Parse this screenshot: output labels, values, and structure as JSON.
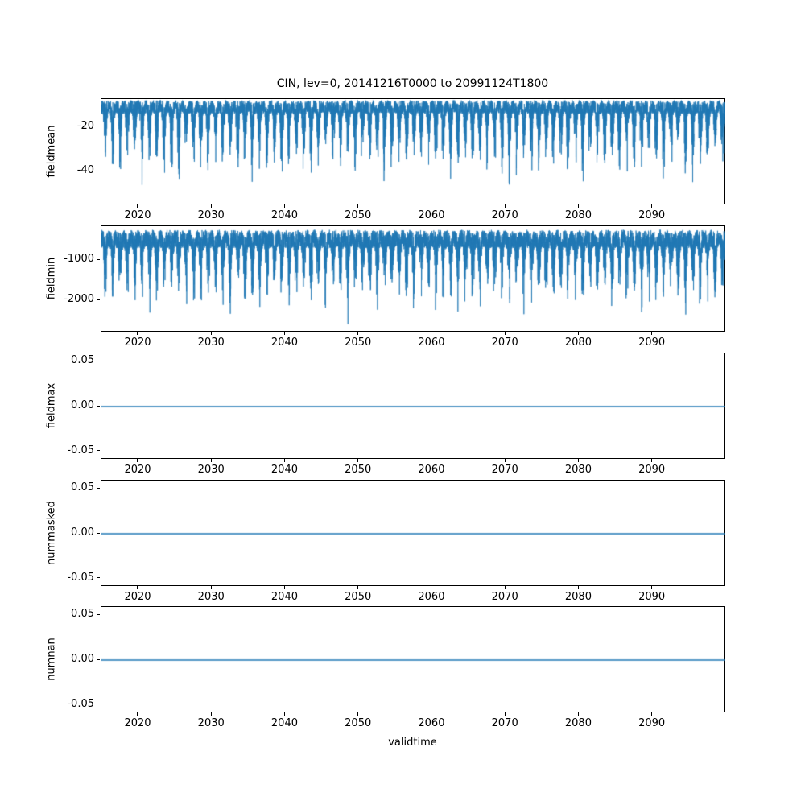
{
  "figure": {
    "title": "CIN, lev=0, 20141216T0000 to 20991124T1800",
    "xlabel": "validtime",
    "accent_color": "#1f77b4",
    "axis_color": "#000000",
    "background_color": "#ffffff",
    "x_range": [
      2014.96,
      2099.9
    ],
    "x_tick_values": [
      2020,
      2030,
      2040,
      2050,
      2060,
      2070,
      2080,
      2090
    ],
    "x_tick_labels": [
      "2020",
      "2030",
      "2040",
      "2050",
      "2060",
      "2070",
      "2080",
      "2090"
    ]
  },
  "chart_data": [
    {
      "type": "line",
      "name": "fieldmean",
      "ylabel": "fieldmean",
      "title": "CIN, lev=0, 20141216T0000 to 20991124T1800",
      "x_range": [
        2014.96,
        2099.9
      ],
      "ylim": [
        -55,
        -7.5
      ],
      "ytick_values": [
        -20,
        -40
      ],
      "ytick_labels": [
        "-20",
        "-40"
      ],
      "grid": false,
      "series": {
        "kind": "noisy",
        "description": "Dense 6-hourly CIN field-mean time series; upper envelope about -8, dense band to about -20, seasonal downward spikes to about -52 (deepest near 2054)",
        "top": -8,
        "band": 6,
        "spike": 36,
        "seed": 12,
        "points": 9000,
        "approx_max": -8,
        "approx_min": -52
      }
    },
    {
      "type": "line",
      "name": "fieldmin",
      "ylabel": "fieldmin",
      "x_range": [
        2014.96,
        2099.9
      ],
      "ylim": [
        -2800,
        -160
      ],
      "ytick_values": [
        -1000,
        -2000
      ],
      "ytick_labels": [
        "-1000",
        "-2000"
      ],
      "grid": false,
      "series": {
        "kind": "noisy",
        "description": "Dense 6-hourly CIN field-minimum time series; upper envelope about -250, dense band to about -700, seasonal downward spikes to about -2700 (deepest near 2054)",
        "top": -250,
        "band": 450,
        "spike": 2000,
        "seed": 99,
        "points": 9000,
        "approx_max": -250,
        "approx_min": -2700
      }
    },
    {
      "type": "line",
      "name": "fieldmax",
      "ylabel": "fieldmax",
      "x_range": [
        2014.96,
        2099.9
      ],
      "ylim": [
        -0.059,
        0.059
      ],
      "ytick_values": [
        0.05,
        0.0,
        -0.05
      ],
      "ytick_labels": [
        "0.05",
        "0.00",
        "-0.05"
      ],
      "grid": false,
      "series": {
        "kind": "constant",
        "description": "Constant zero line across the full time range",
        "value": 0
      }
    },
    {
      "type": "line",
      "name": "nummasked",
      "ylabel": "nummasked",
      "x_range": [
        2014.96,
        2099.9
      ],
      "ylim": [
        -0.059,
        0.059
      ],
      "ytick_values": [
        0.05,
        0.0,
        -0.05
      ],
      "ytick_labels": [
        "0.05",
        "0.00",
        "-0.05"
      ],
      "grid": false,
      "series": {
        "kind": "constant",
        "description": "Constant zero line across the full time range",
        "value": 0
      }
    },
    {
      "type": "line",
      "name": "numnan",
      "ylabel": "numnan",
      "xlabel": "validtime",
      "x_range": [
        2014.96,
        2099.9
      ],
      "ylim": [
        -0.059,
        0.059
      ],
      "ytick_values": [
        0.05,
        0.0,
        -0.05
      ],
      "ytick_labels": [
        "0.05",
        "0.00",
        "-0.05"
      ],
      "grid": false,
      "series": {
        "kind": "constant",
        "description": "Constant zero line across the full time range",
        "value": 0
      }
    }
  ]
}
